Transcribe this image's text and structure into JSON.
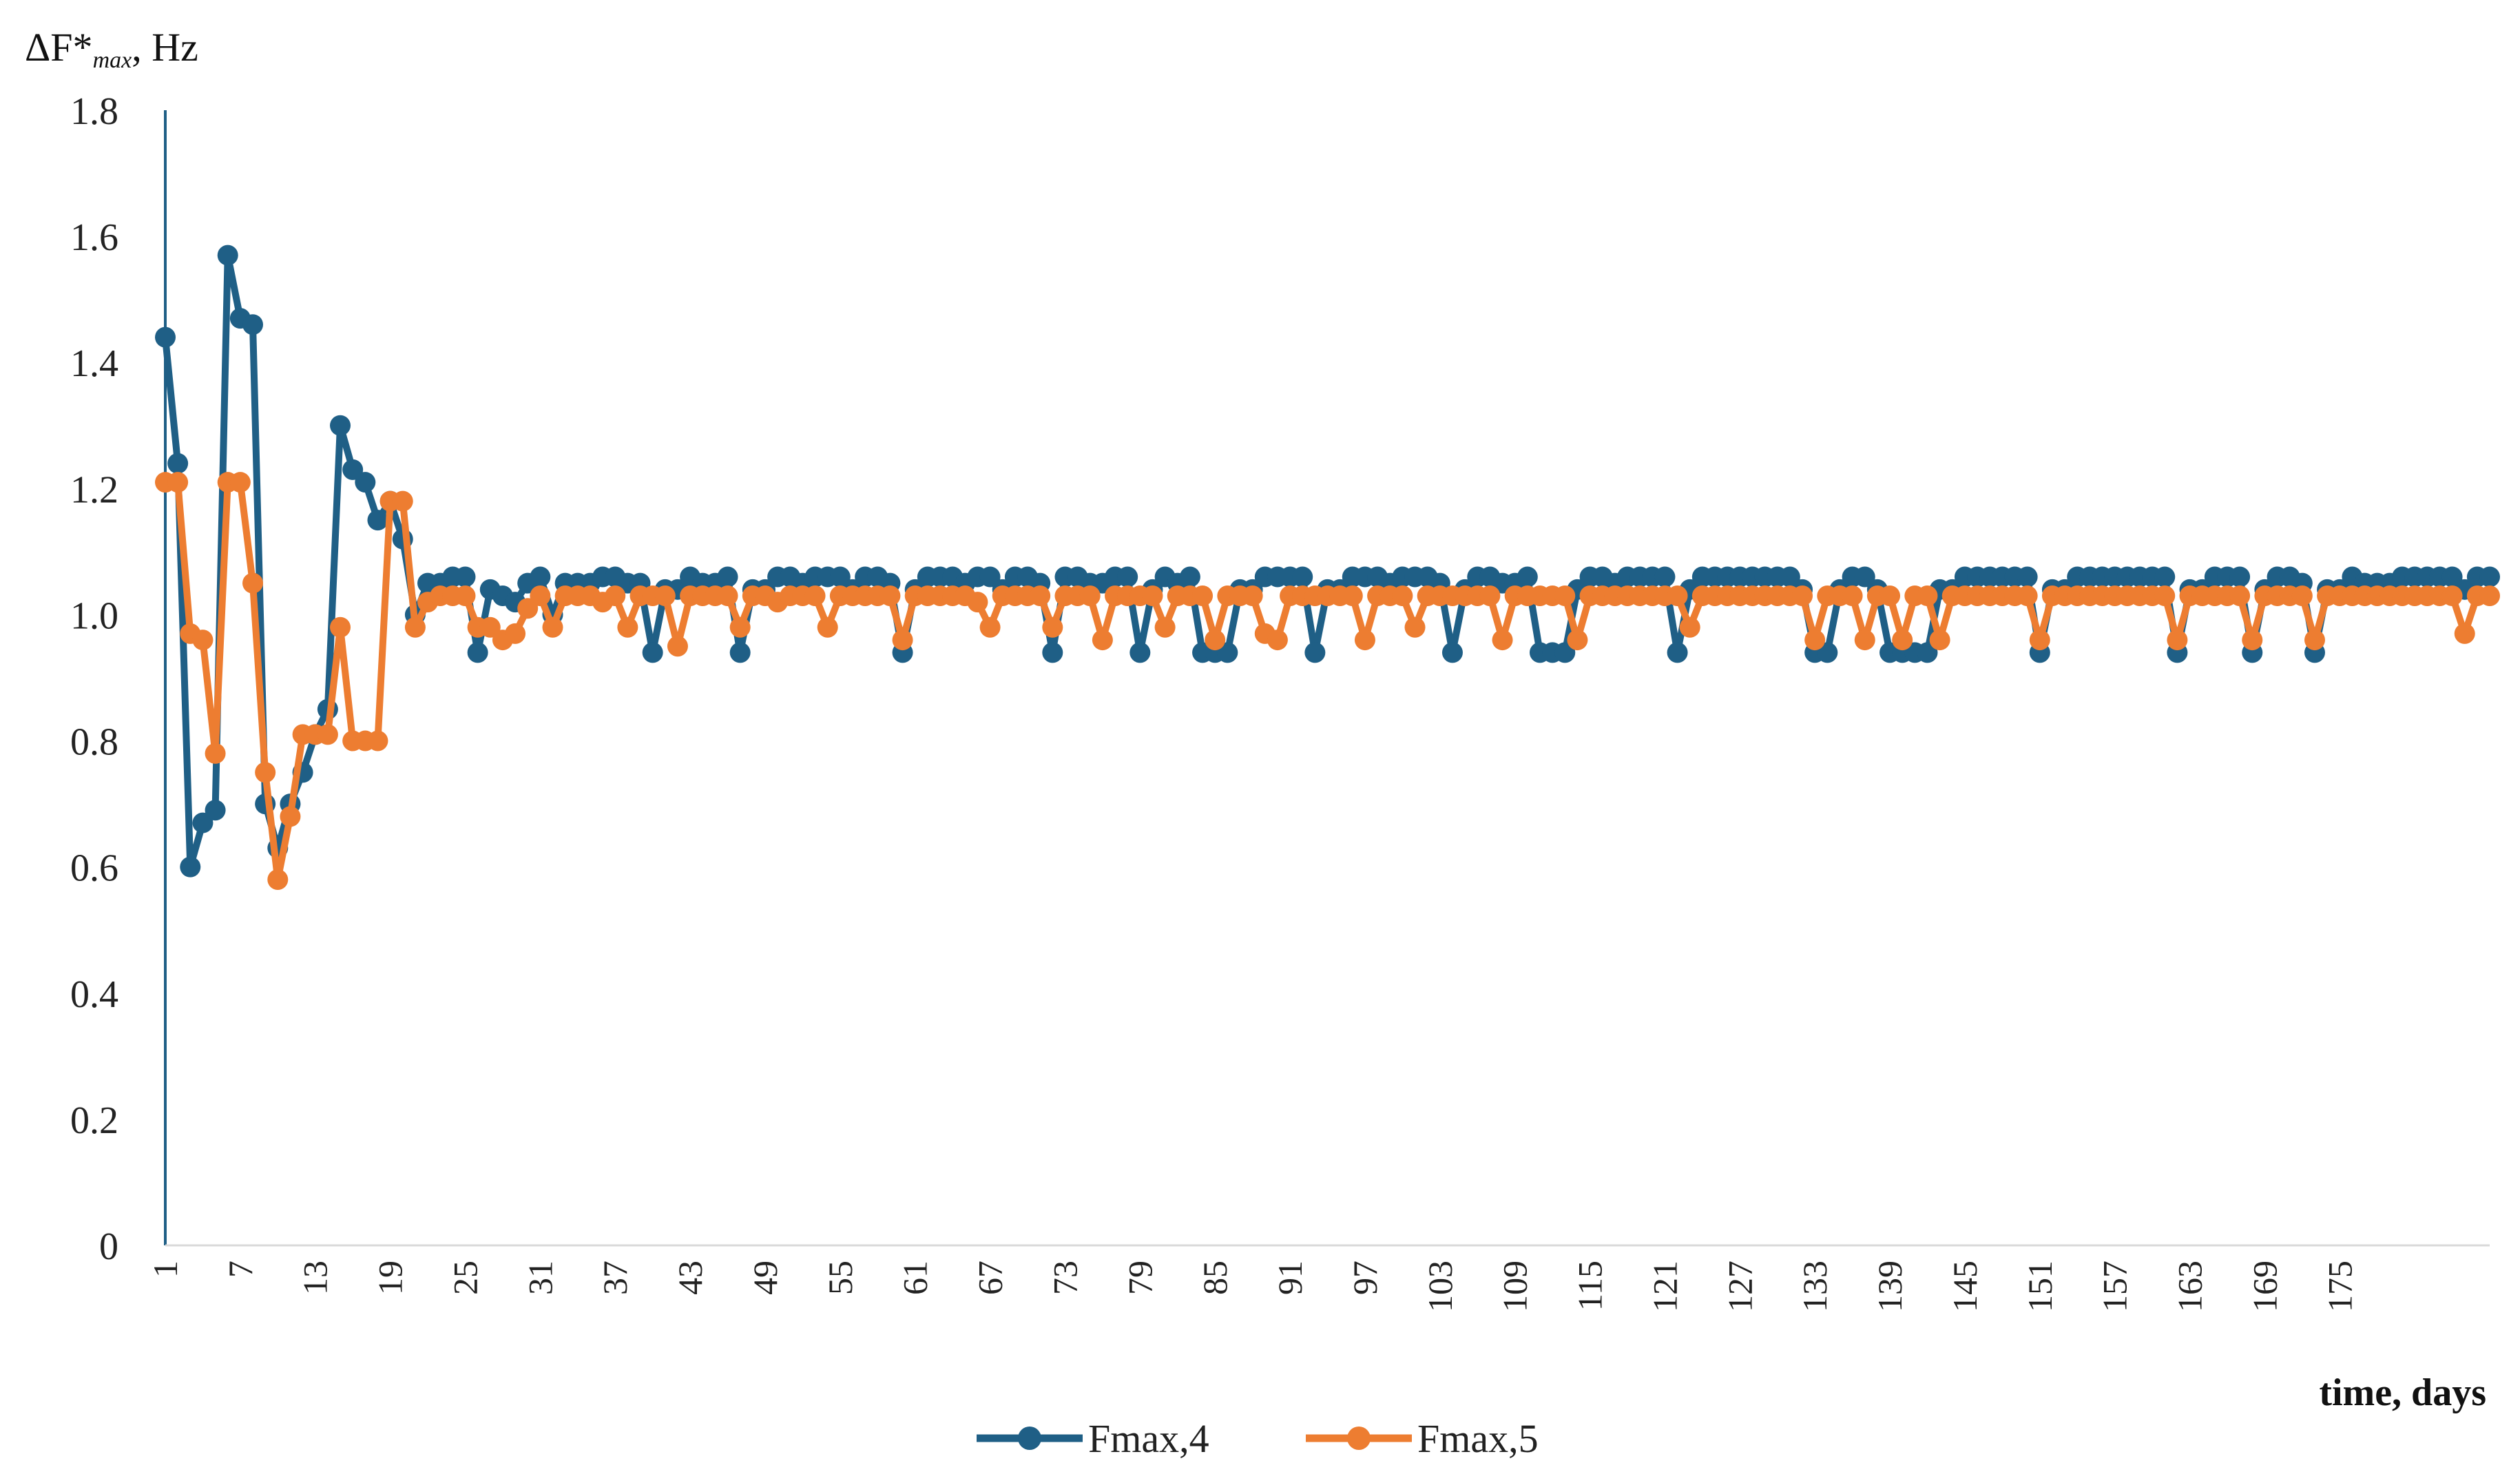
{
  "chart_data": {
    "type": "line",
    "ylabel": "ΔF*max, Hz",
    "ylabel_parts": {
      "main": "ΔF*",
      "sub": "max",
      "unit": ", Hz"
    },
    "xlabel": "time, days",
    "ylim": [
      0,
      1.8
    ],
    "yticks": [
      "0",
      "0.2",
      "0.4",
      "0.6",
      "0.8",
      "1.0",
      "1.2",
      "1.4",
      "1.6",
      "1.8"
    ],
    "xticks": [
      "1",
      "7",
      "13",
      "19",
      "25",
      "31",
      "37",
      "43",
      "49",
      "55",
      "61",
      "67",
      "73",
      "79",
      "85",
      "91",
      "97",
      "103",
      "109",
      "115",
      "121",
      "127",
      "133",
      "139",
      "145",
      "151",
      "157",
      "163",
      "169",
      "175"
    ],
    "grid": false,
    "legend_position": "bottom",
    "x_start": 1,
    "series": [
      {
        "name": "Fmax,4",
        "color": "#1f5f86",
        "values": [
          1.44,
          1.24,
          0.6,
          0.67,
          0.69,
          1.57,
          1.47,
          1.46,
          0.7,
          0.63,
          0.7,
          0.75,
          0.81,
          0.85,
          1.3,
          1.23,
          1.21,
          1.15,
          1.18,
          1.12,
          1.0,
          1.05,
          1.05,
          1.06,
          1.06,
          0.94,
          1.04,
          1.03,
          1.02,
          1.05,
          1.06,
          1.0,
          1.05,
          1.05,
          1.05,
          1.06,
          1.06,
          1.05,
          1.05,
          0.94,
          1.04,
          1.04,
          1.06,
          1.05,
          1.05,
          1.06,
          0.94,
          1.04,
          1.04,
          1.06,
          1.06,
          1.05,
          1.06,
          1.06,
          1.06,
          1.04,
          1.06,
          1.06,
          1.05,
          0.94,
          1.04,
          1.06,
          1.06,
          1.06,
          1.05,
          1.06,
          1.06,
          1.04,
          1.06,
          1.06,
          1.05,
          0.94,
          1.06,
          1.06,
          1.05,
          1.05,
          1.06,
          1.06,
          0.94,
          1.04,
          1.06,
          1.05,
          1.06,
          0.94,
          0.94,
          0.94,
          1.04,
          1.04,
          1.06,
          1.06,
          1.06,
          1.06,
          0.94,
          1.04,
          1.04,
          1.06,
          1.06,
          1.06,
          1.05,
          1.06,
          1.06,
          1.06,
          1.05,
          0.94,
          1.04,
          1.06,
          1.06,
          1.05,
          1.05,
          1.06,
          0.94,
          0.94,
          0.94,
          1.04,
          1.06,
          1.06,
          1.05,
          1.06,
          1.06,
          1.06,
          1.06,
          0.94,
          1.04,
          1.06,
          1.06,
          1.06,
          1.06,
          1.06,
          1.06,
          1.06,
          1.06,
          1.04,
          0.94,
          0.94,
          1.04,
          1.06,
          1.06,
          1.04,
          0.94,
          0.94,
          0.94,
          0.94,
          1.04,
          1.04,
          1.06,
          1.06,
          1.06,
          1.06,
          1.06,
          1.06,
          0.94,
          1.04,
          1.04,
          1.06,
          1.06,
          1.06,
          1.06,
          1.06,
          1.06,
          1.06,
          1.06,
          0.94,
          1.04,
          1.04,
          1.06,
          1.06,
          1.06,
          0.94,
          1.04,
          1.06,
          1.06,
          1.05,
          0.94,
          1.04,
          1.04,
          1.06,
          1.05,
          1.05,
          1.05,
          1.06,
          1.06,
          1.06,
          1.06,
          1.06,
          1.04,
          1.06,
          1.06
        ]
      },
      {
        "name": "Fmax,5",
        "color": "#ed7d31",
        "values": [
          1.21,
          1.21,
          0.97,
          0.96,
          0.78,
          1.21,
          1.21,
          1.05,
          0.75,
          0.58,
          0.68,
          0.81,
          0.81,
          0.81,
          0.98,
          0.8,
          0.8,
          0.8,
          1.18,
          1.18,
          0.98,
          1.02,
          1.03,
          1.03,
          1.03,
          0.98,
          0.98,
          0.96,
          0.97,
          1.01,
          1.03,
          0.98,
          1.03,
          1.03,
          1.03,
          1.02,
          1.03,
          0.98,
          1.03,
          1.03,
          1.03,
          0.95,
          1.03,
          1.03,
          1.03,
          1.03,
          0.98,
          1.03,
          1.03,
          1.02,
          1.03,
          1.03,
          1.03,
          0.98,
          1.03,
          1.03,
          1.03,
          1.03,
          1.03,
          0.96,
          1.03,
          1.03,
          1.03,
          1.03,
          1.03,
          1.02,
          0.98,
          1.03,
          1.03,
          1.03,
          1.03,
          0.98,
          1.03,
          1.03,
          1.03,
          0.96,
          1.03,
          1.03,
          1.03,
          1.03,
          0.98,
          1.03,
          1.03,
          1.03,
          0.96,
          1.03,
          1.03,
          1.03,
          0.97,
          0.96,
          1.03,
          1.03,
          1.03,
          1.03,
          1.03,
          1.03,
          0.96,
          1.03,
          1.03,
          1.03,
          0.98,
          1.03,
          1.03,
          1.03,
          1.03,
          1.03,
          1.03,
          0.96,
          1.03,
          1.03,
          1.03,
          1.03,
          1.03,
          0.96,
          1.03,
          1.03,
          1.03,
          1.03,
          1.03,
          1.03,
          1.03,
          1.03,
          0.98,
          1.03,
          1.03,
          1.03,
          1.03,
          1.03,
          1.03,
          1.03,
          1.03,
          1.03,
          0.96,
          1.03,
          1.03,
          1.03,
          0.96,
          1.03,
          1.03,
          0.96,
          1.03,
          1.03,
          0.96,
          1.03,
          1.03,
          1.03,
          1.03,
          1.03,
          1.03,
          1.03,
          0.96,
          1.03,
          1.03,
          1.03,
          1.03,
          1.03,
          1.03,
          1.03,
          1.03,
          1.03,
          1.03,
          0.96,
          1.03,
          1.03,
          1.03,
          1.03,
          1.03,
          0.96,
          1.03,
          1.03,
          1.03,
          1.03,
          0.96,
          1.03,
          1.03,
          1.03,
          1.03,
          1.03,
          1.03,
          1.03,
          1.03,
          1.03,
          1.03,
          1.03,
          0.97,
          1.03,
          1.03
        ]
      }
    ]
  }
}
